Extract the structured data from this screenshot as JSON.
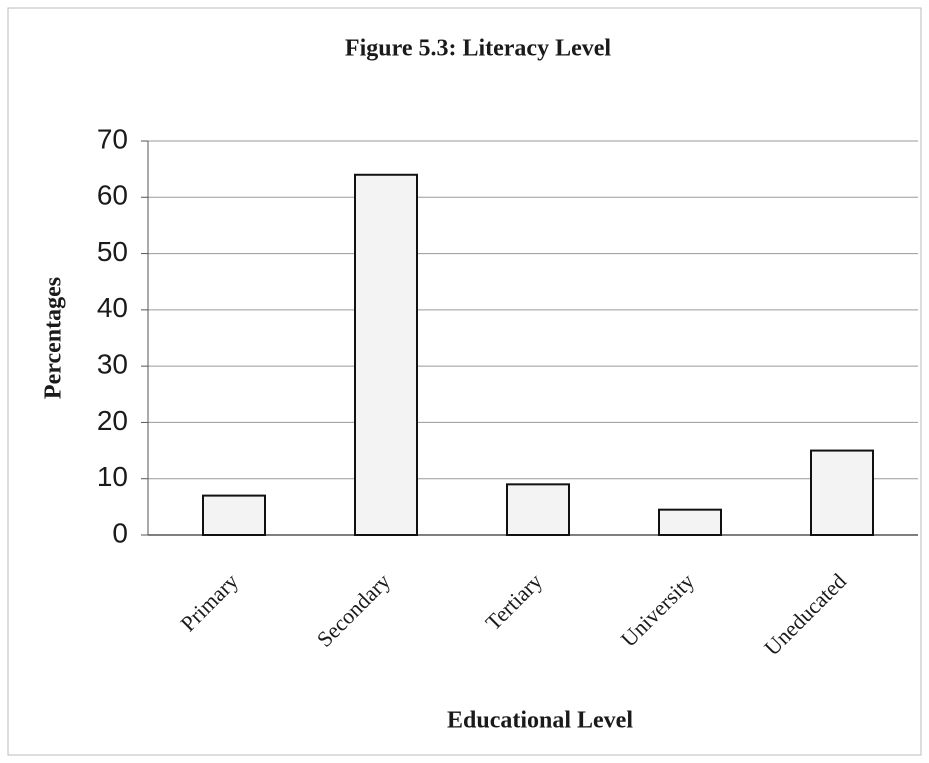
{
  "chart_data": {
    "type": "bar",
    "title": "Figure 5.3: Literacy Level",
    "x_label": "Educational Level",
    "y_label": "Percentages",
    "categories": [
      "Primary",
      "Secondary",
      "Tertiary",
      "University",
      "Uneducated"
    ],
    "values": [
      7,
      64,
      9,
      4.5,
      15
    ],
    "color": "#f3f3f3",
    "ylim": [
      0,
      70
    ],
    "yticks": [
      0,
      10,
      20,
      30,
      40,
      50,
      60,
      70
    ],
    "grid": true
  }
}
